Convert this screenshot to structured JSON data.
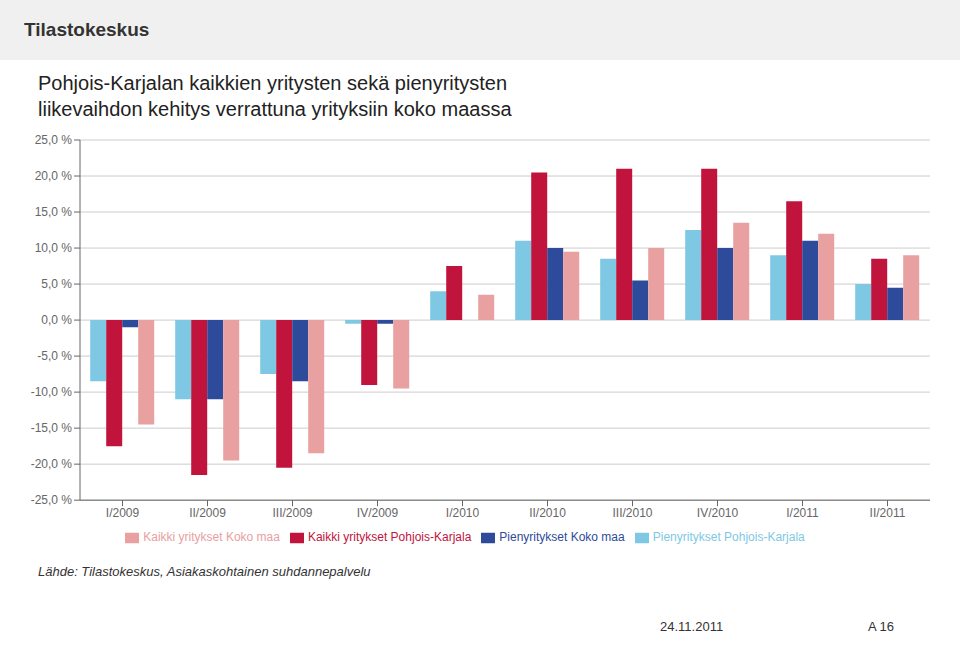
{
  "chart_data": {
    "type": "bar",
    "title": "Pohjois-Karjalan kaikkien yritysten sekä pienyritysten",
    "subtitle": "liikevaihdon kehitys verrattuna yrityksiin koko maassa",
    "categories": [
      "I/2009",
      "II/2009",
      "III/2009",
      "IV/2009",
      "I/2010",
      "II/2010",
      "III/2010",
      "IV/2010",
      "I/2011",
      "II/2011"
    ],
    "series": [
      {
        "name": "Pienyritykset Pohjois-Karjala",
        "color": "#7EC8E3",
        "values": [
          -8.5,
          -11.0,
          -7.5,
          -0.5,
          4.0,
          11.0,
          8.5,
          12.5,
          9.0,
          5.0
        ]
      },
      {
        "name": "Kaikki yritykset Pohjois-Karjala",
        "color": "#C0143C",
        "values": [
          -17.5,
          -21.5,
          -20.5,
          -9.0,
          7.5,
          20.5,
          21.0,
          21.0,
          16.5,
          8.5
        ]
      },
      {
        "name": "Pienyritykset Koko maa",
        "color": "#2E4A9A",
        "values": [
          -1.0,
          -11.0,
          -8.5,
          -0.5,
          0.0,
          10.0,
          5.5,
          10.0,
          11.0,
          4.5
        ]
      },
      {
        "name": "Kaikki yritykset Koko maa",
        "color": "#E8A0A0",
        "values": [
          -14.5,
          -19.5,
          -18.5,
          -9.5,
          3.5,
          9.5,
          10.0,
          13.5,
          12.0,
          9.0
        ]
      }
    ],
    "ylim": [
      -25,
      25
    ],
    "yticks": [
      {
        "value": -25,
        "label": "-25,0 %"
      },
      {
        "value": -20,
        "label": "-20,0 %"
      },
      {
        "value": -15,
        "label": "-15,0 %"
      },
      {
        "value": -10,
        "label": "-10,0 %"
      },
      {
        "value": -5,
        "label": "-5,0 %"
      },
      {
        "value": 0,
        "label": "0,0 %"
      },
      {
        "value": 5,
        "label": "5,0 %"
      },
      {
        "value": 10,
        "label": "10,0 %"
      },
      {
        "value": 15,
        "label": "15,0 %"
      },
      {
        "value": 20,
        "label": "20,0 %"
      },
      {
        "value": 25,
        "label": "25,0 %"
      }
    ],
    "grid": true,
    "legend": "bottom",
    "annotations": [
      "Tilastokeskus",
      "Lähde: Tilastokeskus, Asiakaskohtainen suhdannepalvelu",
      "24.11.2011",
      "A 16"
    ]
  }
}
